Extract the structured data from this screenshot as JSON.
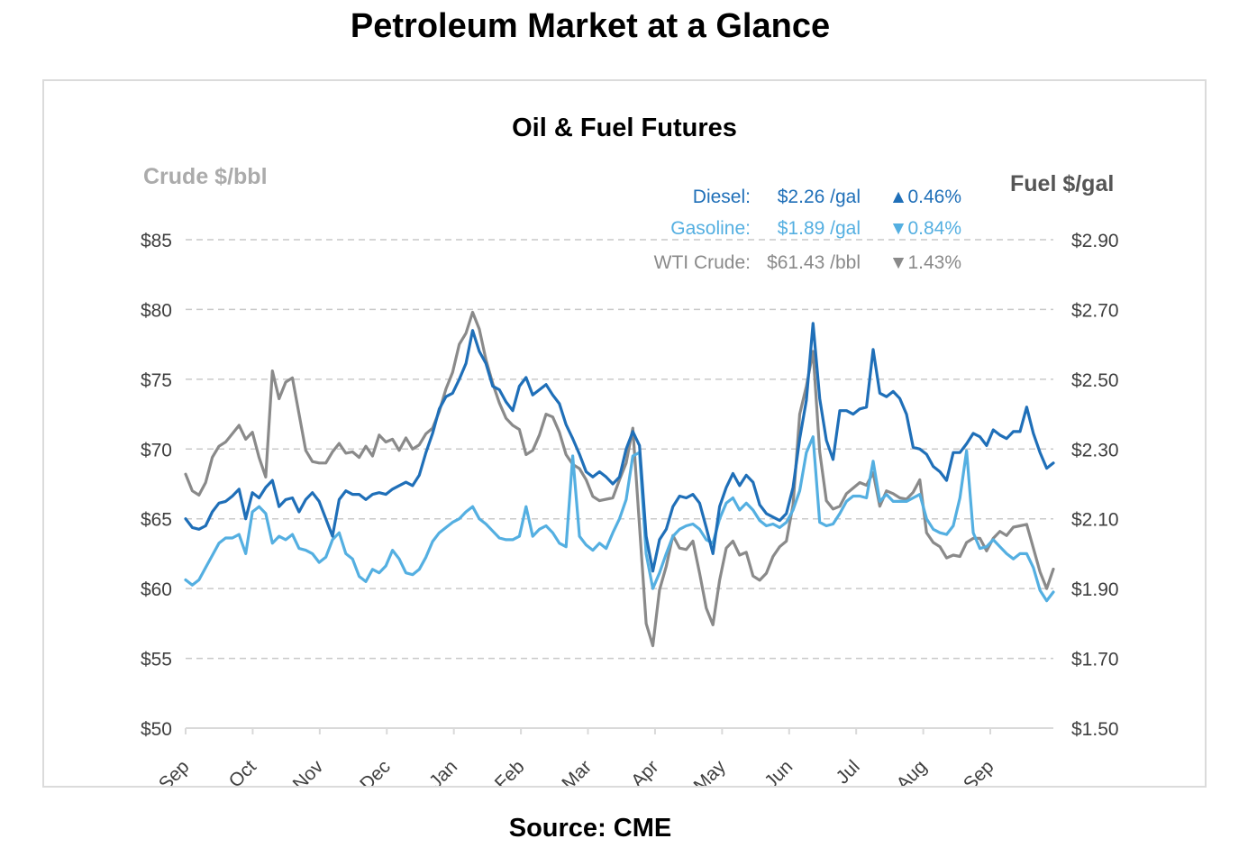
{
  "page_title": "Petroleum Market at a Glance",
  "source_note": "Source: CME",
  "panel": {
    "chart_title": "Oil & Fuel Futures",
    "left_axis_title": "Crude $/bbl",
    "right_axis_title": "Fuel $/gal"
  },
  "colors": {
    "diesel": "#1f6fb8",
    "gasoline": "#54afe1",
    "wti": "#8a8a8a",
    "gridline": "#c9c9c9",
    "axis_line": "#d9d9d9",
    "tick_label": "#3f3f3f"
  },
  "legend": {
    "rows": [
      {
        "label": "Diesel:",
        "value": "$2.26 /gal",
        "arrow": "▲",
        "pct": "0.46%",
        "direction": "up",
        "color": "#1f6fb8"
      },
      {
        "label": "Gasoline:",
        "value": "$1.89 /gal",
        "arrow": "▼",
        "pct": "0.84%",
        "direction": "down",
        "color": "#54afe1"
      },
      {
        "label": "WTI Crude:",
        "value": "$61.43 /bbl",
        "arrow": "▼",
        "pct": "1.43%",
        "direction": "down",
        "color": "#8a8a8a"
      }
    ]
  },
  "chart_data": {
    "type": "line",
    "title": "Oil & Fuel Futures",
    "grid": "dashed-horizontal",
    "legend_position": "top-right-inside",
    "x_labels": [
      "Sep",
      "Oct",
      "Nov",
      "Dec",
      "Jan",
      "Feb",
      "Mar",
      "Apr",
      "May",
      "Jun",
      "Jul",
      "Aug",
      "Sep"
    ],
    "x_label_rotation_deg": -45,
    "x_total_months": 12.94,
    "left_axis": {
      "title": "Crude $/bbl",
      "range": [
        50,
        85
      ],
      "tick_labels": [
        "$85",
        "$80",
        "$75",
        "$70",
        "$65",
        "$60",
        "$55",
        "$50"
      ]
    },
    "right_axis": {
      "title": "Fuel $/gal",
      "range": [
        1.5,
        2.9
      ],
      "tick_labels": [
        "$2.90",
        "$2.70",
        "$2.50",
        "$2.30",
        "$2.10",
        "$1.90",
        "$1.70",
        "$1.50"
      ]
    },
    "note": "Series values sampled uniformly in time from month 0 (Sep) to month 12.94 (late Sep following year).",
    "series": [
      {
        "name": "WTI Crude",
        "unit": "$/bbl",
        "axis": "left",
        "color": "#8a8a8a",
        "last_value": 61.43,
        "change_pct": -1.43,
        "values": [
          68.2,
          67.0,
          66.7,
          67.6,
          69.4,
          70.2,
          70.5,
          71.1,
          71.7,
          70.7,
          71.2,
          69.4,
          68.0,
          75.6,
          73.6,
          74.8,
          75.1,
          72.5,
          69.9,
          69.1,
          69.0,
          69.0,
          69.8,
          70.4,
          69.7,
          69.8,
          69.4,
          70.2,
          69.5,
          71.0,
          70.5,
          70.7,
          69.9,
          70.8,
          70.0,
          70.3,
          71.1,
          71.5,
          72.7,
          74.3,
          75.5,
          77.5,
          78.3,
          79.8,
          78.6,
          76.4,
          74.7,
          73.3,
          72.2,
          71.7,
          71.4,
          69.6,
          69.9,
          71.0,
          72.5,
          72.3,
          71.2,
          69.6,
          68.9,
          68.6,
          67.8,
          66.6,
          66.3,
          66.4,
          66.5,
          67.8,
          69.0,
          71.5,
          64.5,
          57.5,
          55.9,
          59.9,
          61.6,
          63.8,
          62.9,
          62.8,
          63.4,
          61.1,
          58.6,
          57.4,
          60.6,
          62.9,
          63.4,
          62.4,
          62.6,
          60.9,
          60.6,
          61.1,
          62.3,
          63.0,
          63.4,
          66.0,
          72.5,
          74.5,
          77.0,
          69.8,
          66.3,
          65.7,
          65.9,
          66.8,
          67.2,
          67.6,
          67.4,
          68.3,
          65.9,
          67.0,
          66.8,
          66.5,
          66.4,
          66.9,
          67.8,
          64.0,
          63.3,
          63.0,
          62.2,
          62.4,
          62.3,
          63.3,
          63.6,
          63.6,
          62.7,
          63.6,
          64.1,
          63.8,
          64.4,
          64.5,
          64.6,
          62.9,
          61.2,
          60.0,
          61.4
        ]
      },
      {
        "name": "Gasoline",
        "unit": "$/gal",
        "axis": "right",
        "color": "#54afe1",
        "last_value": 1.89,
        "change_pct": -0.84,
        "values": [
          1.925,
          1.91,
          1.925,
          1.96,
          1.995,
          2.03,
          2.045,
          2.045,
          2.055,
          2.0,
          2.12,
          2.135,
          2.115,
          2.03,
          2.05,
          2.04,
          2.055,
          2.015,
          2.01,
          2.0,
          1.975,
          1.99,
          2.04,
          2.06,
          2.0,
          1.985,
          1.935,
          1.92,
          1.955,
          1.945,
          1.965,
          2.01,
          1.985,
          1.945,
          1.94,
          1.955,
          1.99,
          2.035,
          2.06,
          2.075,
          2.09,
          2.1,
          2.12,
          2.135,
          2.1,
          2.085,
          2.065,
          2.045,
          2.04,
          2.04,
          2.05,
          2.135,
          2.05,
          2.07,
          2.08,
          2.06,
          2.03,
          2.02,
          2.28,
          2.05,
          2.025,
          2.01,
          2.03,
          2.015,
          2.06,
          2.1,
          2.155,
          2.28,
          2.29,
          2.0,
          1.9,
          1.945,
          2.0,
          2.05,
          2.07,
          2.08,
          2.085,
          2.07,
          2.04,
          2.03,
          2.1,
          2.145,
          2.16,
          2.125,
          2.145,
          2.125,
          2.095,
          2.08,
          2.085,
          2.075,
          2.09,
          2.125,
          2.18,
          2.29,
          2.335,
          2.09,
          2.08,
          2.085,
          2.115,
          2.15,
          2.165,
          2.165,
          2.16,
          2.265,
          2.15,
          2.17,
          2.15,
          2.15,
          2.15,
          2.16,
          2.17,
          2.1,
          2.07,
          2.06,
          2.055,
          2.08,
          2.16,
          2.295,
          2.06,
          2.015,
          2.02,
          2.04,
          2.02,
          2.0,
          1.985,
          2.0,
          2.0,
          1.96,
          1.895,
          1.865,
          1.89
        ]
      },
      {
        "name": "Diesel",
        "unit": "$/gal",
        "axis": "right",
        "color": "#1f6fb8",
        "last_value": 2.26,
        "change_pct": 0.46,
        "values": [
          2.1,
          2.075,
          2.07,
          2.08,
          2.12,
          2.145,
          2.15,
          2.165,
          2.185,
          2.1,
          2.175,
          2.16,
          2.19,
          2.21,
          2.135,
          2.155,
          2.16,
          2.12,
          2.155,
          2.175,
          2.15,
          2.1,
          2.05,
          2.155,
          2.18,
          2.17,
          2.17,
          2.155,
          2.17,
          2.175,
          2.17,
          2.185,
          2.195,
          2.205,
          2.195,
          2.225,
          2.29,
          2.345,
          2.415,
          2.45,
          2.46,
          2.5,
          2.545,
          2.64,
          2.58,
          2.545,
          2.48,
          2.47,
          2.435,
          2.41,
          2.48,
          2.505,
          2.455,
          2.47,
          2.485,
          2.455,
          2.43,
          2.37,
          2.33,
          2.285,
          2.235,
          2.22,
          2.235,
          2.22,
          2.2,
          2.22,
          2.3,
          2.35,
          2.31,
          2.05,
          1.95,
          2.04,
          2.07,
          2.135,
          2.165,
          2.16,
          2.17,
          2.145,
          2.075,
          2.0,
          2.135,
          2.19,
          2.23,
          2.195,
          2.225,
          2.205,
          2.14,
          2.115,
          2.105,
          2.095,
          2.115,
          2.19,
          2.33,
          2.44,
          2.66,
          2.445,
          2.325,
          2.27,
          2.41,
          2.41,
          2.4,
          2.415,
          2.42,
          2.585,
          2.46,
          2.45,
          2.465,
          2.445,
          2.4,
          2.305,
          2.3,
          2.285,
          2.25,
          2.235,
          2.21,
          2.29,
          2.29,
          2.315,
          2.345,
          2.335,
          2.31,
          2.355,
          2.34,
          2.33,
          2.35,
          2.35,
          2.42,
          2.345,
          2.29,
          2.245,
          2.26
        ]
      }
    ]
  }
}
